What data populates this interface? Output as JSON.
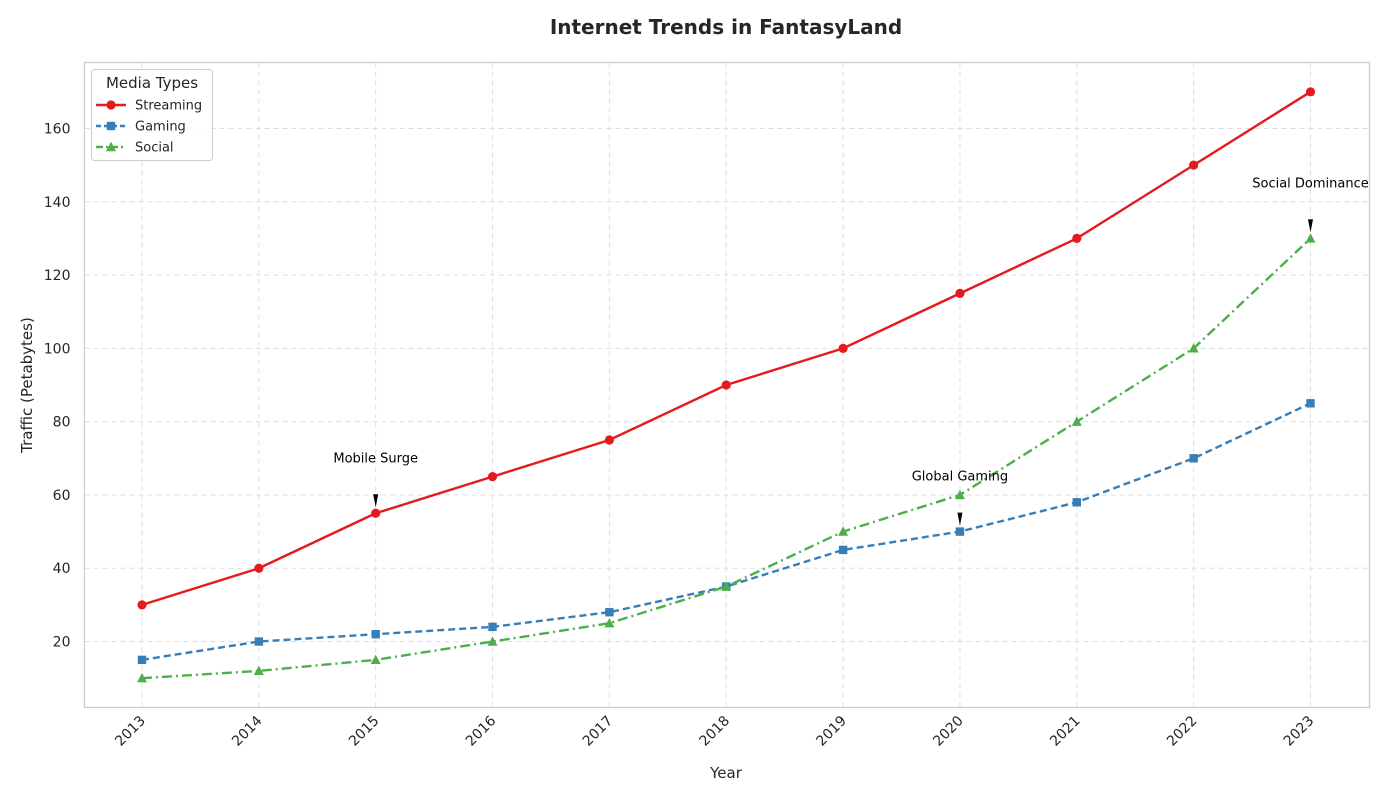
{
  "chart_data": {
    "type": "line",
    "title": "Internet Trends in FantasyLand",
    "xlabel": "Year",
    "ylabel": "Traffic (Petabytes)",
    "x": [
      2013,
      2014,
      2015,
      2016,
      2017,
      2018,
      2019,
      2020,
      2021,
      2022,
      2023
    ],
    "ylim": [
      2,
      178
    ],
    "yticks": [
      20,
      40,
      60,
      80,
      100,
      120,
      140,
      160
    ],
    "grid": true,
    "legend": {
      "title": "Media Types",
      "placement": "top-left"
    },
    "series": [
      {
        "name": "Streaming",
        "values": [
          30,
          40,
          55,
          65,
          75,
          90,
          100,
          115,
          130,
          150,
          170
        ],
        "color": "#e41a1c",
        "linestyle": "solid",
        "marker": "circle"
      },
      {
        "name": "Gaming",
        "values": [
          15,
          20,
          22,
          24,
          28,
          35,
          45,
          50,
          58,
          70,
          85
        ],
        "color": "#377eb8",
        "linestyle": "dashed",
        "marker": "square"
      },
      {
        "name": "Social",
        "values": [
          10,
          12,
          15,
          20,
          25,
          35,
          50,
          60,
          80,
          100,
          130
        ],
        "color": "#4daf4a",
        "linestyle": "dashdot",
        "marker": "triangle"
      }
    ],
    "annotations": [
      {
        "text": "Mobile Surge",
        "x": 2015,
        "y": 55,
        "text_y": 70
      },
      {
        "text": "Global Gaming",
        "x": 2020,
        "y": 50,
        "text_y": 65
      },
      {
        "text": "Social Dominance",
        "x": 2023,
        "y": 130,
        "text_y": 145
      }
    ]
  }
}
